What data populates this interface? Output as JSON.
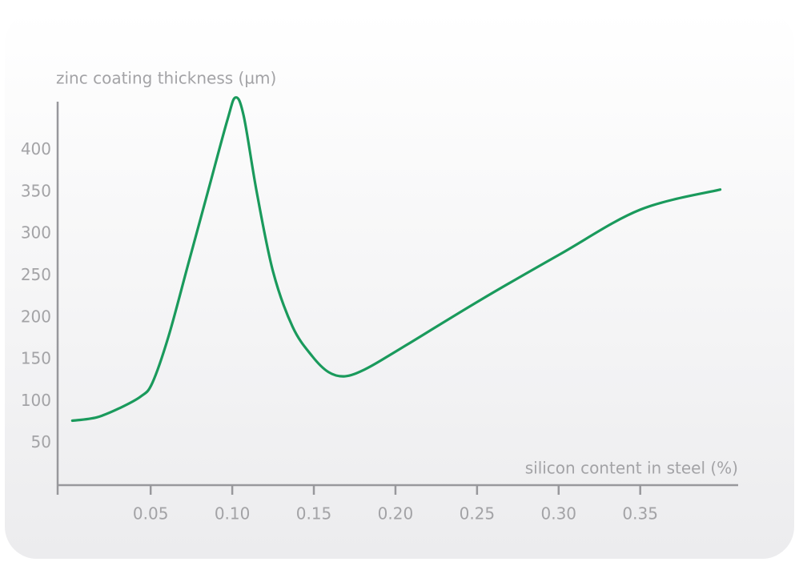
{
  "chart_data": {
    "type": "line",
    "x_label": "silicon content in steel (%)",
    "y_label": "zinc coating thickness (µm)",
    "x": [
      0.002,
      0.017,
      0.031,
      0.044,
      0.051,
      0.061,
      0.073,
      0.085,
      0.097,
      0.102,
      0.107,
      0.115,
      0.125,
      0.137,
      0.149,
      0.159,
      0.169,
      0.181,
      0.198,
      0.252,
      0.301,
      0.35,
      0.399
    ],
    "series": [
      {
        "color": "#1a9a5c",
        "values": [
          77,
          81,
          92,
          106,
          122,
          178,
          264,
          350,
          436,
          463,
          441,
          350,
          255,
          189,
          154,
          135,
          130,
          138,
          157,
          221,
          276,
          329,
          353
        ]
      }
    ],
    "xlim": [
      -0.007,
      0.41
    ],
    "ylim": [
      0,
      458
    ],
    "xticks": [
      0.05,
      {
        "value": 0.1,
        "label": "0.10"
      },
      0.15,
      {
        "value": 0.2,
        "label": "0.20"
      },
      0.25,
      {
        "value": 0.3,
        "label": "0.30"
      },
      0.35
    ],
    "yticks": [
      50,
      100,
      150,
      200,
      250,
      300,
      350,
      400
    ],
    "grid": false
  }
}
